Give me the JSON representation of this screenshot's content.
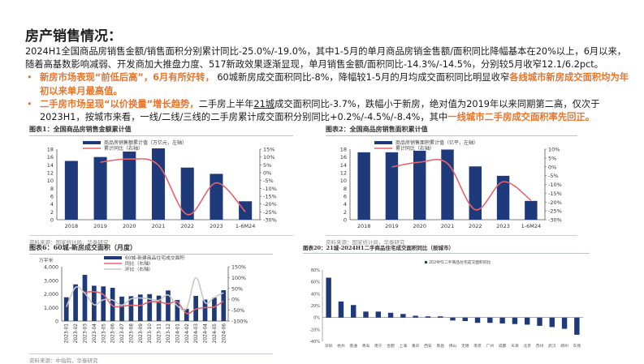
{
  "page": {
    "title": "房产销售情况：",
    "intro": "2024H1全国商品房销售金额/销售面积分别累计同比-25.0%/-19.0%，其中1-5月的单月商品房销金售额/面积同比降幅基本在20%以上，6月以来，随着高基数影响减弱、开发商加大推盘力度、517新政效果逐渐显现，单月销售金额/面积同比-14.3%/-14.5%，分别较5月收窄12.1/6.2pct。",
    "bullets": [
      {
        "highlight1": "新房市场表现“前低后高”，6月有所好转，",
        "text1": " 60城新房成交面积同比-8%，降幅较1-5月的月均成交面积同比明显收窄",
        "highlight2": "各线城市新房成交面积均为年初以来单月最高值。"
      },
      {
        "highlight1": "二手房市场呈现“以价换量”增长趋势，",
        "text1a": "二手房上半年",
        "underline": "21城",
        "text1b": "成交面积同比-3.7%，跌幅小于新房，绝对值为2019年以来同期第二高，仅次于2023H1，按城市来看，一线/二线/三线的二手房累计成交面积分别同比+0.2%/-4.5%/-8.4%，其中",
        "highlight2": "一线城市二手房成交面积率先回正。"
      }
    ]
  },
  "chart_data": [
    {
      "id": "fig1",
      "type": "bar",
      "title": "图表1：全国商品房销售金额累计值",
      "source": "资料来源：国家统计局，华泰研究",
      "categories": [
        "2018",
        "2019",
        "2020",
        "2021",
        "2022",
        "2023",
        "1-6M24"
      ],
      "series": [
        {
          "name": "商品房销售额累计值（万亿元，左轴）",
          "type": "bar",
          "axis": "left",
          "values": [
            15.0,
            16.0,
            17.4,
            18.2,
            13.3,
            11.7,
            4.7
          ],
          "color": "#1f3a7a"
        },
        {
          "name": "累计同比（右轴）",
          "type": "line",
          "axis": "right",
          "values": [
            null,
            6.7,
            8.7,
            4.8,
            -26.7,
            -6.5,
            -25.0
          ],
          "color": "#e8646c"
        }
      ],
      "left_axis": {
        "ylim": [
          0,
          18
        ],
        "ticks": [
          "0",
          "2",
          "4",
          "6",
          "8",
          "10",
          "12",
          "14",
          "16",
          "18"
        ]
      },
      "right_axis": {
        "ylim": [
          -30,
          15
        ],
        "ticks": [
          "-30%",
          "-25%",
          "-20%",
          "-15%",
          "-10%",
          "-5%",
          "0%",
          "5%",
          "10%",
          "15%"
        ]
      }
    },
    {
      "id": "fig2",
      "type": "bar",
      "title": "图表2：全国商品房销售面积累计值",
      "source": "资料来源：国家统计局，华泰研究",
      "categories": [
        "2018",
        "2019",
        "2020",
        "2021",
        "2022",
        "2023",
        "1-6M24"
      ],
      "series": [
        {
          "name": "商品房销售面积累计值（亿平，左轴）",
          "type": "bar",
          "axis": "left",
          "values": [
            17.2,
            17.2,
            17.6,
            17.9,
            13.6,
            11.2,
            4.8
          ],
          "color": "#1f3a7a"
        },
        {
          "name": "累计同比（右轴）",
          "type": "line",
          "axis": "right",
          "values": [
            null,
            -0.1,
            2.6,
            1.9,
            -24.3,
            -8.5,
            -19.0
          ],
          "color": "#e8646c"
        }
      ],
      "left_axis": {
        "ylim": [
          0,
          18
        ],
        "ticks": [
          "0",
          "2",
          "4",
          "6",
          "8",
          "10",
          "12",
          "14",
          "16",
          "18"
        ]
      },
      "right_axis": {
        "ylim": [
          -30,
          10
        ],
        "ticks": [
          "-30%",
          "-25%",
          "-20%",
          "-15%",
          "-10%",
          "-5%",
          "0%",
          "5%",
          "10%"
        ]
      }
    },
    {
      "id": "fig6",
      "type": "bar",
      "title": "图表6：60城-新房成交面积（月度）",
      "source": "资料来源：中指院，华泰研究",
      "unit": "万平米",
      "categories": [
        "2023-01",
        "2023-02",
        "2023-03",
        "2023-04",
        "2023-05",
        "2023-06",
        "2023-07",
        "2023-08",
        "2023-09",
        "2023-10",
        "2023-11",
        "2023-12",
        "2024-01",
        "2024-02",
        "2024-03",
        "2024-04",
        "2024-05",
        "2024-06"
      ],
      "series": [
        {
          "name": "60城-新建商品住宅成交面积",
          "type": "bar",
          "axis": "left",
          "values": [
            1750,
            2700,
            3400,
            2600,
            2550,
            2450,
            1800,
            1830,
            1950,
            1980,
            1870,
            2250,
            1550,
            900,
            1850,
            1580,
            1720,
            2270
          ],
          "color": "#1f3a7a"
        },
        {
          "name": "同比（右轴）",
          "type": "line",
          "axis": "right",
          "values": [
            null,
            null,
            32,
            35,
            22,
            -30,
            -32,
            -27,
            -28,
            -12,
            -12,
            -20,
            -12,
            -65,
            -45,
            -38,
            -35,
            -8
          ],
          "color": "#e8646c"
        },
        {
          "name": "环比（右轴）",
          "type": "line",
          "axis": "right",
          "values": [
            -35,
            55,
            28,
            -25,
            -2,
            -3,
            -27,
            2,
            6,
            2,
            -5,
            20,
            -30,
            -42,
            100,
            -15,
            9,
            30
          ],
          "color": "#c8c8c8"
        }
      ],
      "left_axis": {
        "ylim": [
          0,
          4000
        ],
        "ticks": [
          "0",
          "1,000",
          "2,000",
          "3,000",
          "4,000"
        ]
      },
      "right_axis": {
        "ylim": [
          -100,
          150
        ],
        "ticks": [
          "-100%",
          "-50%",
          "0%",
          "50%",
          "100%",
          "150%"
        ]
      }
    },
    {
      "id": "fig20",
      "type": "bar",
      "title": "图表20：21城-2024H1二手商品住宅成交面积同比（按城市）",
      "legend": "2024H1二手商品住宅成交面积同比",
      "categories": [
        "深圳",
        "杭州",
        "南通",
        "青岛",
        "南宁",
        "合肥",
        "上海",
        "重庆",
        "西安",
        "南昌",
        "佛山",
        "无锡",
        "南京",
        "广州",
        "成都",
        "天津",
        "北京",
        "苏州",
        "武汉",
        "郑州",
        "东莞"
      ],
      "values": [
        67,
        27,
        21,
        10,
        10,
        8,
        6,
        3,
        2,
        2,
        -5,
        -6,
        -9,
        -9,
        -10,
        -11,
        -12,
        -14,
        -16,
        -19,
        -29
      ],
      "color": "#1f3a7a",
      "ylim": [
        -40,
        80
      ],
      "ticks": [
        "-40%",
        "-20%",
        "0%",
        "20%",
        "40%",
        "60%",
        "80%"
      ]
    }
  ]
}
